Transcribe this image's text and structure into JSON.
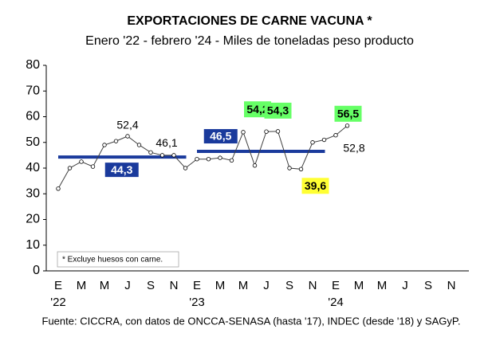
{
  "chart_data": {
    "type": "line",
    "title": "EXPORTACIONES DE CARNE VACUNA *",
    "subtitle": "Enero '22 - febrero '24 - Miles de toneladas peso producto",
    "categories": [
      "E",
      null,
      "M",
      null,
      "M",
      null,
      "J",
      null,
      "S",
      null,
      "N",
      null,
      "E",
      null,
      "M",
      null,
      "M",
      null,
      "J",
      null,
      "S",
      null,
      "N",
      null,
      "E",
      null,
      "M",
      null,
      "M",
      null,
      "J",
      null,
      "S",
      null,
      "N",
      null
    ],
    "category_years": [
      "'22",
      null,
      null,
      null,
      null,
      null,
      null,
      null,
      null,
      null,
      null,
      null,
      "'23",
      null,
      null,
      null,
      null,
      null,
      null,
      null,
      null,
      null,
      null,
      null,
      "'24",
      null,
      null,
      null,
      null,
      null,
      null,
      null,
      null,
      null,
      null,
      null
    ],
    "values": [
      32,
      40,
      42.5,
      40.6,
      49,
      50.5,
      52.4,
      49,
      46.1,
      45,
      45,
      40,
      43.5,
      43.5,
      44,
      43,
      54,
      41,
      54.2,
      54.3,
      40,
      39.6,
      50,
      51,
      52.8,
      56.5,
      null,
      null,
      null,
      null,
      null,
      null,
      null,
      null,
      null,
      null
    ],
    "value_labels": [
      null,
      null,
      null,
      null,
      null,
      null,
      "52,4",
      null,
      "46,1",
      null,
      null,
      null,
      null,
      null,
      null,
      null,
      null,
      null,
      "54,2",
      "54,3",
      null,
      "39,6",
      null,
      null,
      "52,8",
      "56,5",
      null,
      null,
      null,
      null,
      null,
      null,
      null,
      null,
      null,
      null
    ],
    "value_label_backgrounds": [
      null,
      null,
      null,
      null,
      null,
      null,
      null,
      null,
      null,
      null,
      null,
      null,
      null,
      null,
      null,
      null,
      null,
      null,
      "#66ff66",
      "#66ff66",
      null,
      "#ffff33",
      null,
      null,
      null,
      "#66ff66",
      null,
      null,
      null,
      null,
      null,
      null,
      null,
      null,
      null,
      null
    ],
    "color": "#404040",
    "averages": [
      {
        "label": "44,3",
        "value": 44.3,
        "from": 0,
        "to": 11
      },
      {
        "label": "46,5",
        "value": 46.5,
        "from": 12,
        "to": 23
      }
    ],
    "average_color": "#1a3a9c",
    "ylim": [
      0,
      80
    ],
    "yticks": [
      0,
      10,
      20,
      30,
      40,
      50,
      60,
      70,
      80
    ],
    "grid": false,
    "note": "* Excluye huesos con carne.",
    "source": "Fuente: CICCRA, con datos de ONCCA-SENASA (hasta '17), INDEC (desde '18) y SAGyP."
  }
}
